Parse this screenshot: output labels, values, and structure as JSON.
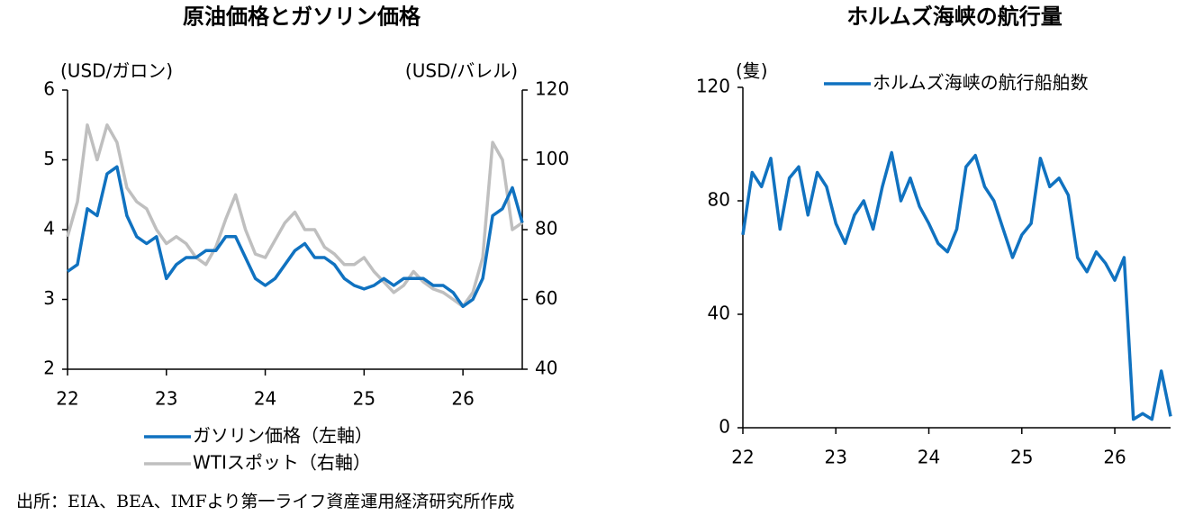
{
  "chart_data": [
    {
      "type": "line",
      "title": "原油価格とガソリン価格",
      "y_label": "(USD/ガロン)",
      "y2_label": "(USD/バレル)",
      "legend": "bottom",
      "x": [
        22.0,
        22.1,
        22.2,
        22.3,
        22.4,
        22.5,
        22.6,
        22.7,
        22.8,
        22.9,
        23.0,
        23.1,
        23.2,
        23.3,
        23.4,
        23.5,
        23.6,
        23.7,
        23.8,
        23.9,
        24.0,
        24.1,
        24.2,
        24.3,
        24.4,
        24.5,
        24.6,
        24.7,
        24.8,
        24.9,
        25.0,
        25.1,
        25.2,
        25.3,
        25.4,
        25.5,
        25.6,
        25.7,
        25.8,
        25.9,
        26.0,
        26.1,
        26.2,
        26.3,
        26.4,
        26.5,
        26.6
      ],
      "xlim": [
        22,
        26.6
      ],
      "xticks": [
        22,
        23,
        24,
        25,
        26
      ],
      "ylim": [
        2,
        6
      ],
      "yticks": [
        2,
        3,
        4,
        5,
        6
      ],
      "y2lim": [
        40,
        120
      ],
      "y2ticks": [
        40,
        60,
        80,
        100,
        120
      ],
      "series": [
        {
          "name": "ガソリン価格（左軸）",
          "color": "#1072c0",
          "values": [
            3.4,
            3.5,
            4.3,
            4.2,
            4.8,
            4.9,
            4.2,
            3.9,
            3.8,
            3.9,
            3.3,
            3.5,
            3.6,
            3.6,
            3.7,
            3.7,
            3.9,
            3.9,
            3.6,
            3.3,
            3.2,
            3.3,
            3.5,
            3.7,
            3.8,
            3.6,
            3.6,
            3.5,
            3.3,
            3.2,
            3.15,
            3.2,
            3.3,
            3.2,
            3.3,
            3.3,
            3.3,
            3.2,
            3.2,
            3.1,
            2.9,
            3.0,
            3.3,
            4.2,
            4.3,
            4.6,
            4.1
          ]
        },
        {
          "name": "WTIスポット（右軸）",
          "color": "#bfbfbf",
          "axis": "y2",
          "values": [
            78,
            88,
            110,
            100,
            110,
            105,
            92,
            88,
            86,
            80,
            76,
            78,
            76,
            72,
            70,
            75,
            83,
            90,
            80,
            73,
            72,
            77,
            82,
            85,
            80,
            80,
            75,
            73,
            70,
            70,
            72,
            68,
            65,
            62,
            64,
            68,
            65,
            63,
            62,
            60,
            58,
            62,
            72,
            105,
            100,
            80,
            82
          ]
        }
      ]
    },
    {
      "type": "line",
      "title": "ホルムズ海峡の航行量",
      "y_label": "(隻)",
      "legend": "top",
      "x": [
        22.0,
        22.1,
        22.2,
        22.3,
        22.4,
        22.5,
        22.6,
        22.7,
        22.8,
        22.9,
        23.0,
        23.1,
        23.2,
        23.3,
        23.4,
        23.5,
        23.6,
        23.7,
        23.8,
        23.9,
        24.0,
        24.1,
        24.2,
        24.3,
        24.4,
        24.5,
        24.6,
        24.7,
        24.8,
        24.9,
        25.0,
        25.1,
        25.2,
        25.3,
        25.4,
        25.5,
        25.6,
        25.7,
        25.8,
        25.9,
        26.0,
        26.1,
        26.2,
        26.3,
        26.4,
        26.5,
        26.6
      ],
      "xlim": [
        22,
        26.6
      ],
      "xticks": [
        22,
        23,
        24,
        25,
        26
      ],
      "ylim": [
        0,
        120
      ],
      "yticks": [
        0,
        40,
        80,
        120
      ],
      "series": [
        {
          "name": "ホルムズ海峡の航行船舶数",
          "color": "#1072c0",
          "values": [
            68,
            90,
            85,
            95,
            70,
            88,
            92,
            75,
            90,
            85,
            72,
            65,
            75,
            80,
            70,
            85,
            97,
            80,
            88,
            78,
            72,
            65,
            62,
            70,
            92,
            96,
            85,
            80,
            70,
            60,
            68,
            72,
            95,
            85,
            88,
            82,
            60,
            55,
            62,
            58,
            52,
            60,
            3,
            5,
            3,
            20,
            4
          ]
        }
      ]
    }
  ],
  "source": "出所：EIA、BEA、IMFより第一ライフ資産運用経済研究所作成"
}
